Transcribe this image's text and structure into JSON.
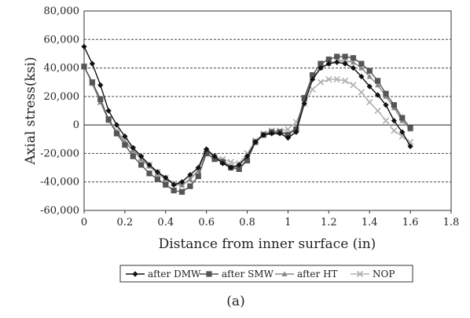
{
  "chart_data": {
    "type": "line",
    "title": "",
    "xlabel": "Distance from inner surface (in)",
    "ylabel": "Axial stress(ksi)",
    "caption": "(a)",
    "xlim": [
      0,
      1.8
    ],
    "ylim": [
      -60000,
      80000
    ],
    "x_ticks": [
      "0",
      "0.2",
      "0.4",
      "0.6",
      "0.8",
      "1",
      "1.2",
      "1.4",
      "1.6",
      "1.8"
    ],
    "y_ticks": [
      "80,000",
      "60,000",
      "40,000",
      "20,000",
      "0",
      "-20,000",
      "-40,000",
      "-60,000"
    ],
    "x_tick_values": [
      0,
      0.2,
      0.4,
      0.6,
      0.8,
      1.0,
      1.2,
      1.4,
      1.6,
      1.8
    ],
    "y_tick_values": [
      80000,
      60000,
      40000,
      20000,
      0,
      -20000,
      -40000,
      -60000
    ],
    "grid": "horizontal dashed",
    "legend_position": "bottom",
    "series": [
      {
        "name": "after DMW",
        "marker": "diamond",
        "color": "#111111",
        "points": [
          [
            0,
            55000
          ],
          [
            0.04,
            43000
          ],
          [
            0.08,
            28000
          ],
          [
            0.12,
            10000
          ],
          [
            0.16,
            0
          ],
          [
            0.2,
            -8000
          ],
          [
            0.24,
            -16000
          ],
          [
            0.28,
            -22000
          ],
          [
            0.32,
            -28000
          ],
          [
            0.36,
            -33000
          ],
          [
            0.4,
            -37000
          ],
          [
            0.44,
            -42000
          ],
          [
            0.48,
            -40000
          ],
          [
            0.52,
            -35000
          ],
          [
            0.56,
            -30000
          ],
          [
            0.6,
            -17000
          ],
          [
            0.64,
            -22000
          ],
          [
            0.68,
            -27000
          ],
          [
            0.72,
            -30000
          ],
          [
            0.76,
            -28000
          ],
          [
            0.8,
            -22000
          ],
          [
            0.84,
            -12000
          ],
          [
            0.88,
            -7000
          ],
          [
            0.92,
            -6000
          ],
          [
            0.96,
            -6000
          ],
          [
            1.0,
            -9000
          ],
          [
            1.04,
            -5000
          ],
          [
            1.08,
            15000
          ],
          [
            1.12,
            32000
          ],
          [
            1.16,
            40000
          ],
          [
            1.2,
            43000
          ],
          [
            1.24,
            44000
          ],
          [
            1.28,
            43000
          ],
          [
            1.32,
            40000
          ],
          [
            1.36,
            34000
          ],
          [
            1.4,
            27000
          ],
          [
            1.44,
            21000
          ],
          [
            1.48,
            14000
          ],
          [
            1.52,
            3000
          ],
          [
            1.56,
            -5000
          ],
          [
            1.6,
            -15000
          ]
        ]
      },
      {
        "name": "after SMW",
        "marker": "square",
        "color": "#555555",
        "points": [
          [
            0,
            41000
          ],
          [
            0.04,
            30000
          ],
          [
            0.08,
            18000
          ],
          [
            0.12,
            4000
          ],
          [
            0.16,
            -6000
          ],
          [
            0.2,
            -14000
          ],
          [
            0.24,
            -22000
          ],
          [
            0.28,
            -28000
          ],
          [
            0.32,
            -34000
          ],
          [
            0.36,
            -38000
          ],
          [
            0.4,
            -42000
          ],
          [
            0.44,
            -46000
          ],
          [
            0.48,
            -47000
          ],
          [
            0.52,
            -43000
          ],
          [
            0.56,
            -36000
          ],
          [
            0.6,
            -20000
          ],
          [
            0.64,
            -24000
          ],
          [
            0.68,
            -26000
          ],
          [
            0.72,
            -30000
          ],
          [
            0.76,
            -31000
          ],
          [
            0.8,
            -25000
          ],
          [
            0.84,
            -12000
          ],
          [
            0.88,
            -7000
          ],
          [
            0.92,
            -5000
          ],
          [
            0.96,
            -5000
          ],
          [
            1.0,
            -7000
          ],
          [
            1.04,
            -3000
          ],
          [
            1.08,
            19000
          ],
          [
            1.12,
            35000
          ],
          [
            1.16,
            43000
          ],
          [
            1.2,
            46000
          ],
          [
            1.24,
            48000
          ],
          [
            1.28,
            48000
          ],
          [
            1.32,
            47000
          ],
          [
            1.36,
            43000
          ],
          [
            1.4,
            38000
          ],
          [
            1.44,
            31000
          ],
          [
            1.48,
            22000
          ],
          [
            1.52,
            14000
          ],
          [
            1.56,
            5000
          ],
          [
            1.6,
            -2000
          ]
        ]
      },
      {
        "name": "after HT",
        "marker": "triangle",
        "color": "#888888",
        "points": [
          [
            0,
            41000
          ],
          [
            0.04,
            29000
          ],
          [
            0.08,
            16000
          ],
          [
            0.12,
            3000
          ],
          [
            0.16,
            -5000
          ],
          [
            0.2,
            -12000
          ],
          [
            0.24,
            -18000
          ],
          [
            0.28,
            -24000
          ],
          [
            0.32,
            -29000
          ],
          [
            0.36,
            -34000
          ],
          [
            0.4,
            -38000
          ],
          [
            0.44,
            -41000
          ],
          [
            0.48,
            -42000
          ],
          [
            0.52,
            -38000
          ],
          [
            0.56,
            -32000
          ],
          [
            0.6,
            -18000
          ],
          [
            0.64,
            -23000
          ],
          [
            0.68,
            -25000
          ],
          [
            0.72,
            -29000
          ],
          [
            0.76,
            -30000
          ],
          [
            0.8,
            -24000
          ],
          [
            0.84,
            -12000
          ],
          [
            0.88,
            -7000
          ],
          [
            0.92,
            -5000
          ],
          [
            0.96,
            -5000
          ],
          [
            1.0,
            -6000
          ],
          [
            1.04,
            -2000
          ],
          [
            1.08,
            18000
          ],
          [
            1.12,
            33000
          ],
          [
            1.16,
            40000
          ],
          [
            1.2,
            43000
          ],
          [
            1.24,
            45000
          ],
          [
            1.28,
            45000
          ],
          [
            1.32,
            44000
          ],
          [
            1.36,
            40000
          ],
          [
            1.4,
            34000
          ],
          [
            1.44,
            28000
          ],
          [
            1.48,
            20000
          ],
          [
            1.52,
            12000
          ],
          [
            1.56,
            3000
          ],
          [
            1.6,
            -3000
          ]
        ]
      },
      {
        "name": "NOP",
        "marker": "x",
        "color": "#b0b0b0",
        "points": [
          [
            0,
            41000
          ],
          [
            0.04,
            30000
          ],
          [
            0.08,
            16000
          ],
          [
            0.12,
            4000
          ],
          [
            0.16,
            -4000
          ],
          [
            0.2,
            -11000
          ],
          [
            0.24,
            -17000
          ],
          [
            0.28,
            -23000
          ],
          [
            0.32,
            -28000
          ],
          [
            0.36,
            -33000
          ],
          [
            0.4,
            -37000
          ],
          [
            0.44,
            -41000
          ],
          [
            0.48,
            -43000
          ],
          [
            0.52,
            -38000
          ],
          [
            0.56,
            -32000
          ],
          [
            0.6,
            -19000
          ],
          [
            0.64,
            -22000
          ],
          [
            0.68,
            -24000
          ],
          [
            0.72,
            -26000
          ],
          [
            0.76,
            -27000
          ],
          [
            0.8,
            -20000
          ],
          [
            0.84,
            -11000
          ],
          [
            0.88,
            -6000
          ],
          [
            0.92,
            -4000
          ],
          [
            0.96,
            -4000
          ],
          [
            1.0,
            -3000
          ],
          [
            1.04,
            2000
          ],
          [
            1.08,
            15000
          ],
          [
            1.12,
            25000
          ],
          [
            1.16,
            30000
          ],
          [
            1.2,
            32000
          ],
          [
            1.24,
            32000
          ],
          [
            1.28,
            31000
          ],
          [
            1.32,
            28000
          ],
          [
            1.36,
            23000
          ],
          [
            1.4,
            16000
          ],
          [
            1.44,
            10000
          ],
          [
            1.48,
            3000
          ],
          [
            1.52,
            -4000
          ],
          [
            1.56,
            -8000
          ],
          [
            1.6,
            -12000
          ]
        ]
      }
    ]
  }
}
